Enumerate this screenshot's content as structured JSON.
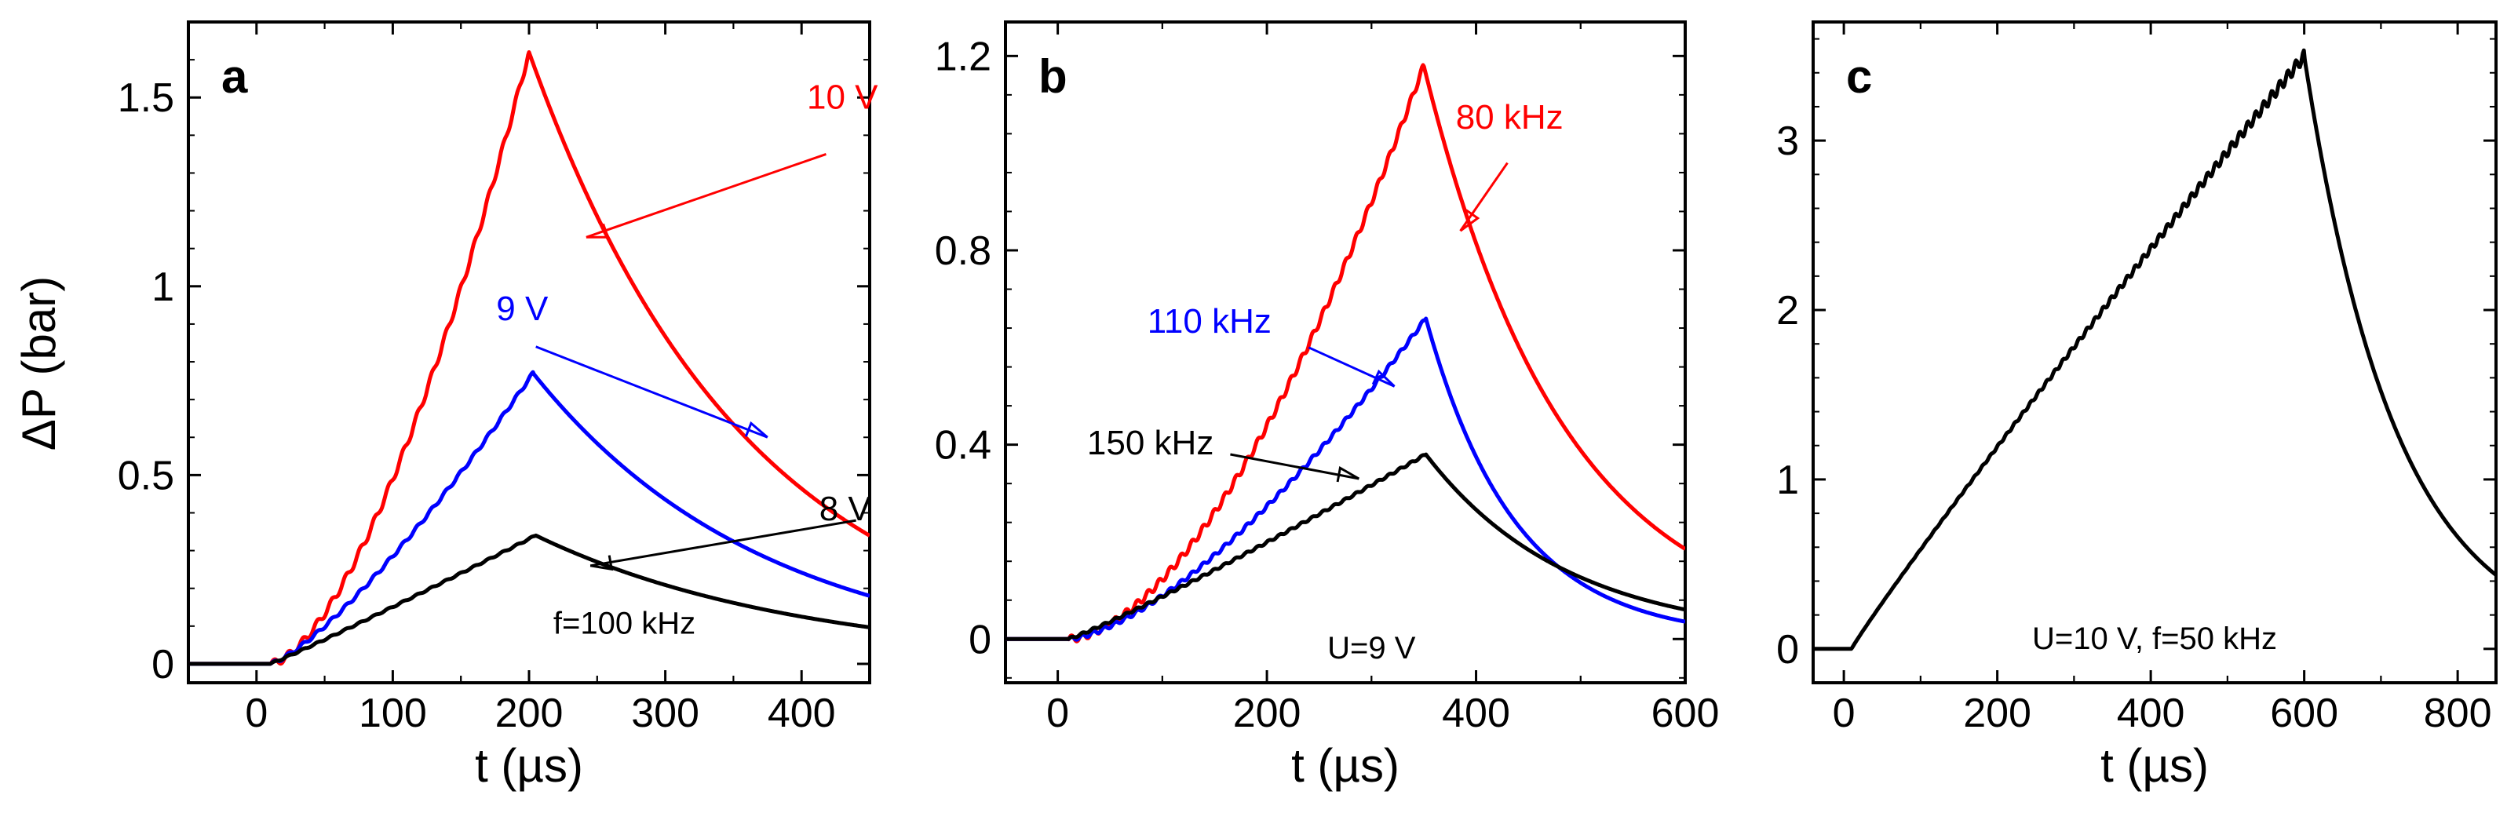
{
  "figure": {
    "y_axis_label": "ΔP (bar)"
  },
  "colors": {
    "red": "#ff0000",
    "blue": "#0000ff",
    "black": "#000000"
  },
  "chart_data": [
    {
      "type": "line",
      "panel_label": "a",
      "xlabel": "t (µs)",
      "ylabel": "ΔP (bar)",
      "xlim": [
        -50,
        450
      ],
      "ylim": [
        -0.05,
        1.7
      ],
      "xticks": [
        0,
        100,
        200,
        300,
        400
      ],
      "xtick_labels": [
        "0",
        "100",
        "200",
        "300",
        "400"
      ],
      "yticks": [
        0,
        0.5,
        1,
        1.5
      ],
      "ytick_labels": [
        "0",
        "0.5",
        "1",
        "1.5"
      ],
      "condition": "f=100 kHz",
      "series": [
        {
          "name": "10 V",
          "color": "#ff0000",
          "t_start": 10,
          "t_peak": 200,
          "peak": 1.62,
          "rise_exp": 1.6,
          "tau": 160,
          "x_end": 450,
          "label_at": [
            430,
            1.47
          ],
          "arrow_from": [
            418,
            1.35
          ],
          "arrow_to": [
            242,
            1.13
          ]
        },
        {
          "name": "9 V",
          "color": "#0000ff",
          "t_start": 10,
          "t_peak": 203,
          "peak": 0.77,
          "rise_exp": 1.3,
          "tau": 170,
          "x_end": 450,
          "label_at": [
            195,
            0.91
          ],
          "arrow_from": [
            205,
            0.84
          ],
          "arrow_to": [
            375,
            0.6
          ]
        },
        {
          "name": "8 V",
          "color": "#000000",
          "t_start": 10,
          "t_peak": 205,
          "peak": 0.34,
          "rise_exp": 1.05,
          "tau": 195,
          "x_end": 450,
          "label_at": [
            432,
            0.38
          ],
          "arrow_from": [
            440,
            0.38
          ],
          "arrow_to": [
            245,
            0.26
          ]
        }
      ]
    },
    {
      "type": "line",
      "panel_label": "b",
      "xlabel": "t (µs)",
      "ylabel": "",
      "xlim": [
        -50,
        600
      ],
      "ylim": [
        -0.09,
        1.27
      ],
      "xticks": [
        0,
        200,
        400,
        600
      ],
      "xtick_labels": [
        "0",
        "200",
        "400",
        "600"
      ],
      "yticks": [
        0,
        0.4,
        0.8,
        1.2
      ],
      "ytick_labels": [
        "0",
        "0.4",
        "0.8",
        "1.2"
      ],
      "condition": "U=9 V",
      "series": [
        {
          "name": "80 kHz",
          "color": "#ff0000",
          "t_start": 10,
          "t_peak": 350,
          "peak": 1.18,
          "rise_exp": 1.7,
          "tau": 135,
          "x_end": 600,
          "label_at": [
            432,
            1.05
          ],
          "arrow_from": [
            430,
            0.98
          ],
          "arrow_to": [
            385,
            0.84
          ]
        },
        {
          "name": "110 kHz",
          "color": "#0000ff",
          "t_start": 10,
          "t_peak": 352,
          "peak": 0.66,
          "rise_exp": 1.5,
          "tau": 85,
          "x_end": 600,
          "label_at": [
            145,
            0.63
          ],
          "arrow_from": [
            240,
            0.6
          ],
          "arrow_to": [
            322,
            0.52
          ]
        },
        {
          "name": "150 kHz",
          "color": "#000000",
          "t_start": 10,
          "t_peak": 352,
          "peak": 0.38,
          "rise_exp": 1.1,
          "tau": 135,
          "x_end": 600,
          "label_at": [
            28,
            0.38
          ],
          "arrow_from": [
            165,
            0.38
          ],
          "arrow_to": [
            288,
            0.33
          ]
        }
      ]
    },
    {
      "type": "line",
      "panel_label": "c",
      "xlabel": "t (µs)",
      "ylabel": "",
      "xlim": [
        -40,
        850
      ],
      "ylim": [
        -0.2,
        3.7
      ],
      "xticks": [
        0,
        200,
        400,
        600,
        800
      ],
      "xtick_labels": [
        "0",
        "200",
        "400",
        "600",
        "800"
      ],
      "yticks": [
        0,
        1,
        2,
        3
      ],
      "ytick_labels": [
        "0",
        "1",
        "2",
        "3"
      ],
      "condition": "U=10 V, f=50 kHz",
      "series": [
        {
          "name": "U=10 V, f=50 kHz",
          "color": "#000000",
          "t_start": 10,
          "t_peak": 600,
          "peak": 3.5,
          "rise_exp": 0.95,
          "tau": 120,
          "x_end": 850
        }
      ]
    }
  ]
}
